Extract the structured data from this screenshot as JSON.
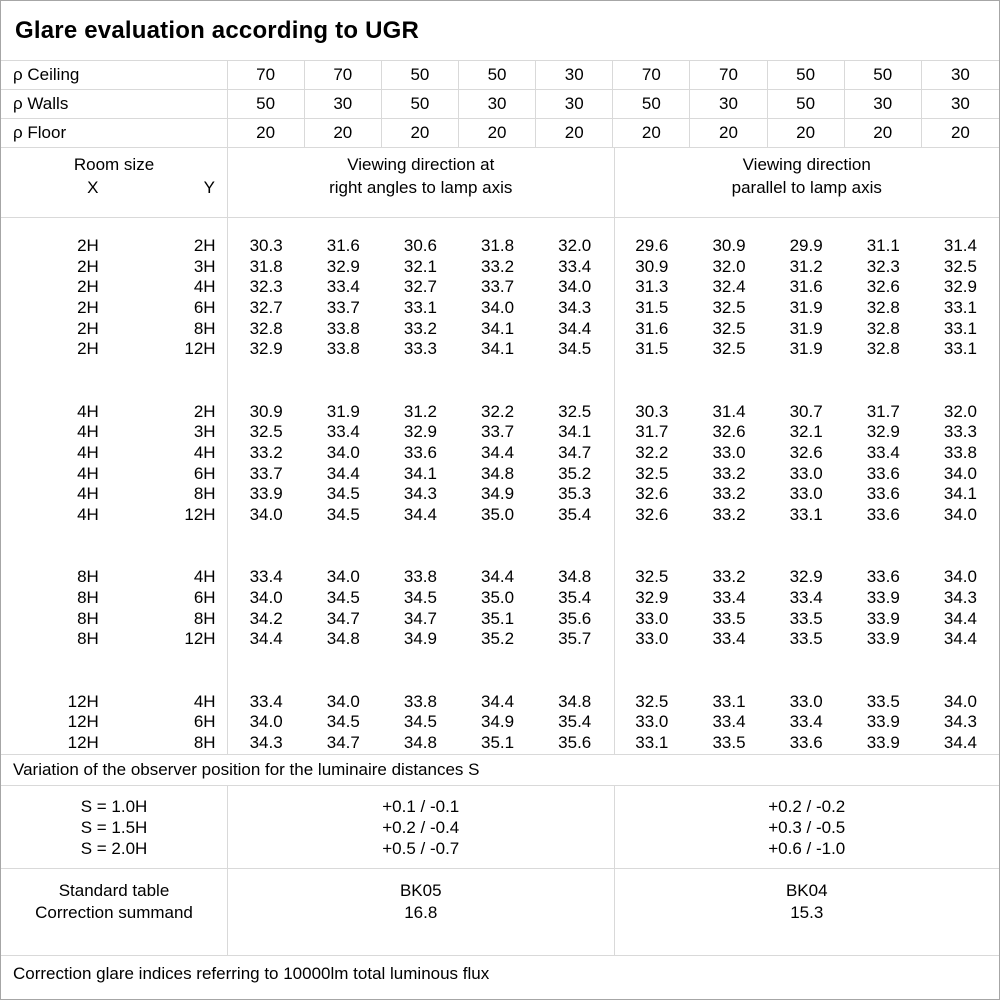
{
  "title": "Glare evaluation according to UGR",
  "reflectances": {
    "rows": [
      {
        "label": "ρ Ceiling",
        "values": [
          "70",
          "70",
          "50",
          "50",
          "30",
          "70",
          "70",
          "50",
          "50",
          "30"
        ]
      },
      {
        "label": "ρ Walls",
        "values": [
          "50",
          "30",
          "50",
          "30",
          "30",
          "50",
          "30",
          "50",
          "30",
          "30"
        ]
      },
      {
        "label": "ρ Floor",
        "values": [
          "20",
          "20",
          "20",
          "20",
          "20",
          "20",
          "20",
          "20",
          "20",
          "20"
        ]
      }
    ]
  },
  "header": {
    "room_size_label": "Room size",
    "x_label": "X",
    "y_label": "Y",
    "group1_line1": "Viewing direction at",
    "group1_line2": "right angles to lamp axis",
    "group2_line1": "Viewing direction",
    "group2_line2": "parallel to lamp axis"
  },
  "ugr_groups": [
    {
      "rows": [
        {
          "x": "2H",
          "y": "2H",
          "right_angle": [
            "30.3",
            "31.6",
            "30.6",
            "31.8",
            "32.0"
          ],
          "parallel": [
            "29.6",
            "30.9",
            "29.9",
            "31.1",
            "31.4"
          ]
        },
        {
          "x": "2H",
          "y": "3H",
          "right_angle": [
            "31.8",
            "32.9",
            "32.1",
            "33.2",
            "33.4"
          ],
          "parallel": [
            "30.9",
            "32.0",
            "31.2",
            "32.3",
            "32.5"
          ]
        },
        {
          "x": "2H",
          "y": "4H",
          "right_angle": [
            "32.3",
            "33.4",
            "32.7",
            "33.7",
            "34.0"
          ],
          "parallel": [
            "31.3",
            "32.4",
            "31.6",
            "32.6",
            "32.9"
          ]
        },
        {
          "x": "2H",
          "y": "6H",
          "right_angle": [
            "32.7",
            "33.7",
            "33.1",
            "34.0",
            "34.3"
          ],
          "parallel": [
            "31.5",
            "32.5",
            "31.9",
            "32.8",
            "33.1"
          ]
        },
        {
          "x": "2H",
          "y": "8H",
          "right_angle": [
            "32.8",
            "33.8",
            "33.2",
            "34.1",
            "34.4"
          ],
          "parallel": [
            "31.6",
            "32.5",
            "31.9",
            "32.8",
            "33.1"
          ]
        },
        {
          "x": "2H",
          "y": "12H",
          "right_angle": [
            "32.9",
            "33.8",
            "33.3",
            "34.1",
            "34.5"
          ],
          "parallel": [
            "31.5",
            "32.5",
            "31.9",
            "32.8",
            "33.1"
          ]
        }
      ]
    },
    {
      "rows": [
        {
          "x": "4H",
          "y": "2H",
          "right_angle": [
            "30.9",
            "31.9",
            "31.2",
            "32.2",
            "32.5"
          ],
          "parallel": [
            "30.3",
            "31.4",
            "30.7",
            "31.7",
            "32.0"
          ]
        },
        {
          "x": "4H",
          "y": "3H",
          "right_angle": [
            "32.5",
            "33.4",
            "32.9",
            "33.7",
            "34.1"
          ],
          "parallel": [
            "31.7",
            "32.6",
            "32.1",
            "32.9",
            "33.3"
          ]
        },
        {
          "x": "4H",
          "y": "4H",
          "right_angle": [
            "33.2",
            "34.0",
            "33.6",
            "34.4",
            "34.7"
          ],
          "parallel": [
            "32.2",
            "33.0",
            "32.6",
            "33.4",
            "33.8"
          ]
        },
        {
          "x": "4H",
          "y": "6H",
          "right_angle": [
            "33.7",
            "34.4",
            "34.1",
            "34.8",
            "35.2"
          ],
          "parallel": [
            "32.5",
            "33.2",
            "33.0",
            "33.6",
            "34.0"
          ]
        },
        {
          "x": "4H",
          "y": "8H",
          "right_angle": [
            "33.9",
            "34.5",
            "34.3",
            "34.9",
            "35.3"
          ],
          "parallel": [
            "32.6",
            "33.2",
            "33.0",
            "33.6",
            "34.1"
          ]
        },
        {
          "x": "4H",
          "y": "12H",
          "right_angle": [
            "34.0",
            "34.5",
            "34.4",
            "35.0",
            "35.4"
          ],
          "parallel": [
            "32.6",
            "33.2",
            "33.1",
            "33.6",
            "34.0"
          ]
        }
      ]
    },
    {
      "rows": [
        {
          "x": "8H",
          "y": "4H",
          "right_angle": [
            "33.4",
            "34.0",
            "33.8",
            "34.4",
            "34.8"
          ],
          "parallel": [
            "32.5",
            "33.2",
            "32.9",
            "33.6",
            "34.0"
          ]
        },
        {
          "x": "8H",
          "y": "6H",
          "right_angle": [
            "34.0",
            "34.5",
            "34.5",
            "35.0",
            "35.4"
          ],
          "parallel": [
            "32.9",
            "33.4",
            "33.4",
            "33.9",
            "34.3"
          ]
        },
        {
          "x": "8H",
          "y": "8H",
          "right_angle": [
            "34.2",
            "34.7",
            "34.7",
            "35.1",
            "35.6"
          ],
          "parallel": [
            "33.0",
            "33.5",
            "33.5",
            "33.9",
            "34.4"
          ]
        },
        {
          "x": "8H",
          "y": "12H",
          "right_angle": [
            "34.4",
            "34.8",
            "34.9",
            "35.2",
            "35.7"
          ],
          "parallel": [
            "33.0",
            "33.4",
            "33.5",
            "33.9",
            "34.4"
          ]
        }
      ]
    },
    {
      "rows": [
        {
          "x": "12H",
          "y": "4H",
          "right_angle": [
            "33.4",
            "34.0",
            "33.8",
            "34.4",
            "34.8"
          ],
          "parallel": [
            "32.5",
            "33.1",
            "33.0",
            "33.5",
            "34.0"
          ]
        },
        {
          "x": "12H",
          "y": "6H",
          "right_angle": [
            "34.0",
            "34.5",
            "34.5",
            "34.9",
            "35.4"
          ],
          "parallel": [
            "33.0",
            "33.4",
            "33.4",
            "33.9",
            "34.3"
          ]
        },
        {
          "x": "12H",
          "y": "8H",
          "right_angle": [
            "34.3",
            "34.7",
            "34.8",
            "35.1",
            "35.6"
          ],
          "parallel": [
            "33.1",
            "33.5",
            "33.6",
            "33.9",
            "34.4"
          ]
        }
      ]
    }
  ],
  "variation_note": "Variation of the observer position for the luminaire distances S",
  "observer_variation": {
    "labels": [
      "S = 1.0H",
      "S = 1.5H",
      "S = 2.0H"
    ],
    "right_angle": [
      "+0.1 / -0.1",
      "+0.2 / -0.4",
      "+0.5 / -0.7"
    ],
    "parallel": [
      "+0.2 / -0.2",
      "+0.3 / -0.5",
      "+0.6 / -1.0"
    ]
  },
  "summary": {
    "standard_table_label": "Standard table",
    "correction_summand_label": "Correction summand",
    "right_angle": {
      "standard_table": "BK05",
      "correction_summand": "16.8"
    },
    "parallel": {
      "standard_table": "BK04",
      "correction_summand": "15.3"
    }
  },
  "footer_note": "Correction glare indices referring to 10000lm total luminous flux",
  "colors": {
    "grid_line": "#d9d9d9",
    "outer_border": "#a6a6a6",
    "text": "#000000",
    "background": "#ffffff"
  }
}
